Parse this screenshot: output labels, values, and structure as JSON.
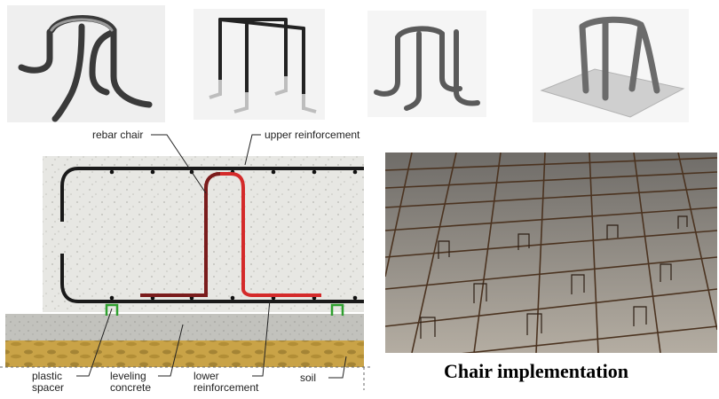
{
  "labels": {
    "rebar_chair": "rebar chair",
    "upper_reinforcement": "upper reinforcement",
    "plastic_spacer_line1": "plastic",
    "plastic_spacer_line2": "spacer",
    "leveling_concrete_line1": "leveling",
    "leveling_concrete_line2": "concrete",
    "lower_reinforcement_line1": "lower",
    "lower_reinforcement_line2": "reinforcement",
    "soil": "soil"
  },
  "caption": "Chair implementation",
  "colors": {
    "rebar": "#1a1a1a",
    "chair_red": "#d42a2a",
    "chair_dark": "#7a1c1c",
    "spacer": "#2fa02f",
    "concrete": "#e6e6e2",
    "leveling": "#bdbdb8",
    "soil": "#c6a24a"
  },
  "photos": [
    {
      "name": "chair-photo-1",
      "subject": "bent rebar chair, four curled legs"
    },
    {
      "name": "chair-photo-2",
      "subject": "tall rebar chair with painted legs"
    },
    {
      "name": "chair-photo-3",
      "subject": "short rebar chair, four bent feet"
    },
    {
      "name": "chair-photo-4",
      "subject": "rebar chair welded on metal base plate"
    }
  ]
}
